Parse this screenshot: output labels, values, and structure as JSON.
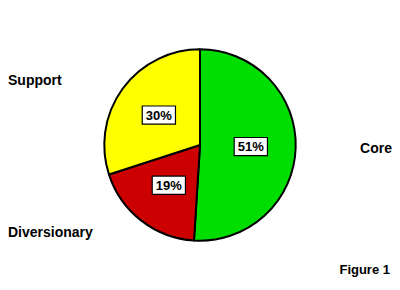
{
  "chart_data": {
    "type": "pie",
    "categories": [
      "Core",
      "Diversionary",
      "Support"
    ],
    "values": [
      51,
      19,
      30
    ],
    "value_labels": [
      "51%",
      "19%",
      "30%"
    ],
    "colors": [
      "#00dd00",
      "#cc0000",
      "#ffff00"
    ],
    "data_labels": true,
    "annotations": [
      "Figure 1"
    ]
  }
}
